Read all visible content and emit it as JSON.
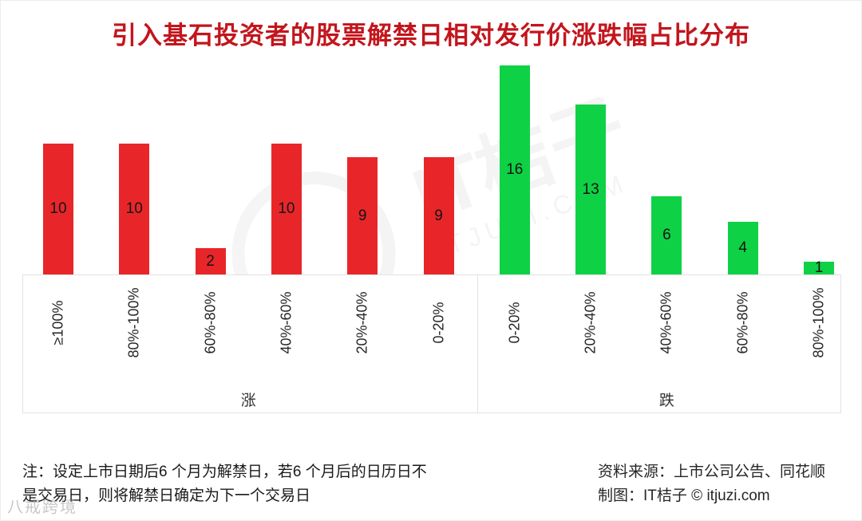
{
  "title": "引入基石投资者的股票解禁日相对发行价涨跌幅占比分布",
  "chart_data": {
    "type": "bar",
    "title": "引入基石投资者的股票解禁日相对发行价涨跌幅占比分布",
    "ylim": [
      0,
      16
    ],
    "grid": false,
    "legend": "none",
    "category_label_rotation": 90,
    "groups": [
      {
        "name": "涨",
        "color": "#e8262a",
        "categories": [
          "≥100%",
          "80%-100%",
          "60%-80%",
          "40%-60%",
          "20%-40%",
          "0-20%"
        ],
        "values": [
          10,
          10,
          2,
          10,
          9,
          9
        ]
      },
      {
        "name": "跌",
        "color": "#0ed145",
        "categories": [
          "0-20%",
          "20%-40%",
          "40%-60%",
          "60%-80%",
          "80%-100%"
        ],
        "values": [
          16,
          13,
          6,
          4,
          1
        ]
      }
    ]
  },
  "note": {
    "line1": "注：设定上市日期后6 个月为解禁日，若6 个月后的日历日不",
    "line2": "是交易日，则将解禁日确定为下一个交易日"
  },
  "source": {
    "line1": "资料来源：上市公司公告、同花顺",
    "line2": "制图：IT桔子 © itjuzi.com"
  },
  "watermark": {
    "center_text": "IT桔子",
    "center_subtext": "ITJUZI.COM",
    "bottom_left": "八戒跨境"
  },
  "colors": {
    "title": "#c3151c",
    "rise_bar": "#e8262a",
    "fall_bar": "#0ed145"
  }
}
